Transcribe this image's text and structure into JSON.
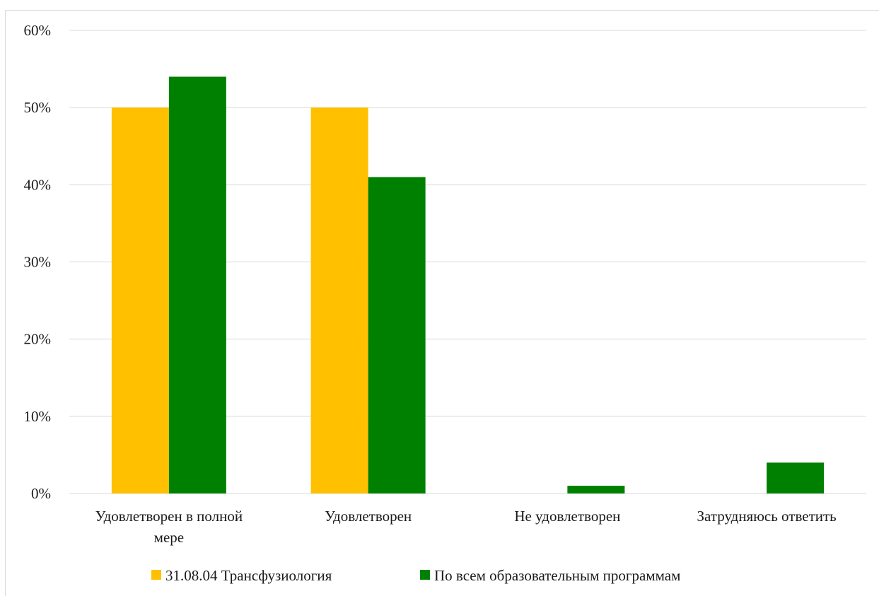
{
  "chart_data": {
    "type": "bar",
    "categories": [
      [
        "Удовлетворен в полной",
        "мере"
      ],
      [
        "Удовлетворен"
      ],
      [
        "Не удовлетворен"
      ],
      [
        "Затрудняюсь ответить"
      ]
    ],
    "series": [
      {
        "name": "31.08.04 Трансфузиология",
        "color": "#FFC000",
        "values": [
          50,
          50,
          0,
          0
        ]
      },
      {
        "name": "По всем образовательным программам",
        "color": "#008000",
        "values": [
          54,
          41,
          1,
          4
        ]
      }
    ],
    "ylim": [
      0,
      60
    ],
    "yticks": [
      "0%",
      "10%",
      "20%",
      "30%",
      "40%",
      "50%",
      "60%"
    ],
    "grid": true,
    "legend_position": "bottom"
  }
}
